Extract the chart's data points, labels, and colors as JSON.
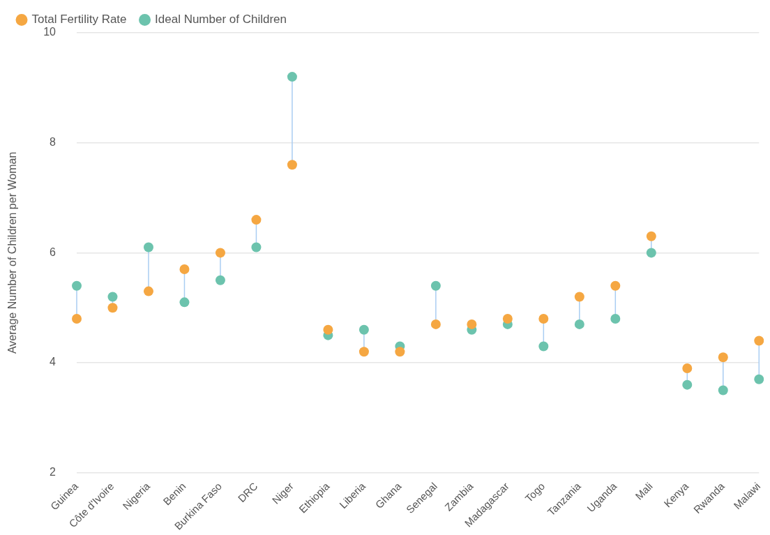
{
  "chart_data": {
    "type": "scatter",
    "ylabel": "Average Number of Children per Woman",
    "categories": [
      "Guinea",
      "Côte d'Ivoire",
      "Nigeria",
      "Benin",
      "Burkina Faso",
      "DRC",
      "Niger",
      "Ethiopia",
      "Liberia",
      "Ghana",
      "Senegal",
      "Zambia",
      "Madagascar",
      "Togo",
      "Tanzania",
      "Uganda",
      "Mali",
      "Kenya",
      "Rwanda",
      "Malawi"
    ],
    "series": [
      {
        "name": "Total Fertility Rate",
        "color": "#f5a742",
        "values": [
          4.8,
          5.0,
          5.3,
          5.7,
          6.0,
          6.6,
          7.6,
          4.6,
          4.2,
          4.2,
          4.7,
          4.7,
          4.8,
          4.8,
          5.2,
          5.4,
          6.3,
          3.9,
          4.1,
          4.4
        ]
      },
      {
        "name": "Ideal Number of Children",
        "color": "#6cc3ad",
        "values": [
          5.4,
          5.2,
          6.1,
          5.1,
          5.5,
          6.1,
          9.2,
          4.5,
          4.6,
          4.3,
          5.4,
          4.6,
          4.7,
          4.3,
          4.7,
          4.8,
          6.0,
          3.6,
          3.5,
          3.7
        ]
      }
    ],
    "ylim": [
      2,
      10
    ],
    "yticks": [
      2,
      4,
      6,
      8,
      10
    ],
    "grid": "y",
    "legend": "top left",
    "marker": "circle"
  }
}
